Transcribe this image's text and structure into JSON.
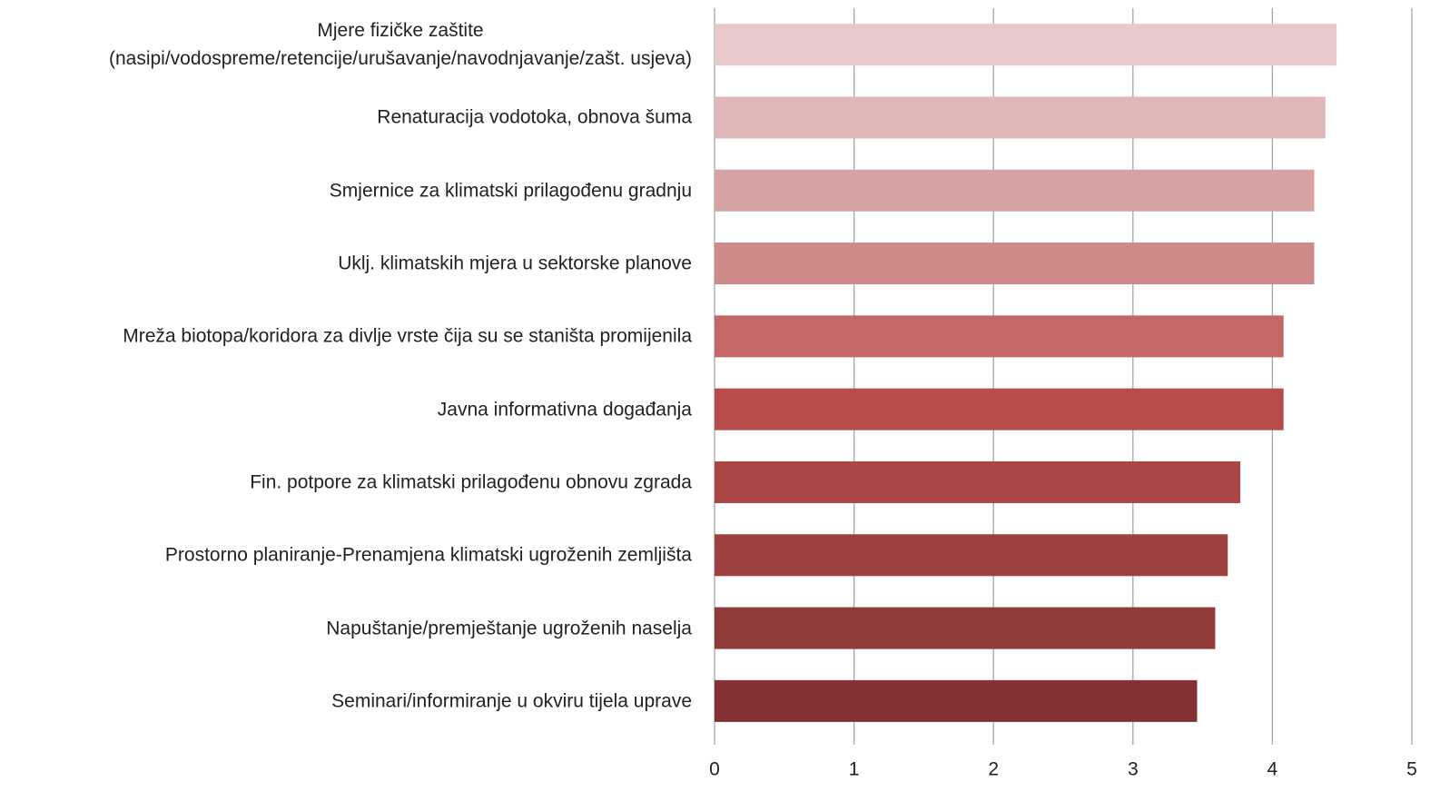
{
  "chart_data": {
    "type": "bar",
    "orientation": "horizontal",
    "categories": [
      "Mjere fizičke zaštite\n(nasipi/vodospreme/retencije/urušavanje/navodnjavanje/zašt. usjeva)",
      "Renaturacija vodotoka, obnova šuma",
      "Smjernice za klimatski prilagođenu gradnju",
      "Uklj. klimatskih mjera u sektorske planove",
      "Mreža biotopa/koridora za divlje vrste čija su se staništa promijenila",
      "Javna informativna događanja",
      "Fin. potpore za klimatski prilagođenu obnovu zgrada ",
      "Prostorno planiranje-Prenamjena klimatski ugroženih zemljišta",
      "Napuštanje/premještanje ugroženih naselja",
      "Seminari/informiranje u okviru tijela uprave"
    ],
    "values": [
      4.46,
      4.38,
      4.3,
      4.3,
      4.08,
      4.08,
      3.77,
      3.68,
      3.59,
      3.46
    ],
    "colors": [
      "#e8cacb",
      "#e0b7b8",
      "#d6a3a4",
      "#cd8a89",
      "#c46766",
      "#b84c4a",
      "#aa4644",
      "#9e403e",
      "#903a39",
      "#833133"
    ],
    "xlim": [
      0,
      5
    ],
    "xticks": [
      0,
      1,
      2,
      3,
      4,
      5
    ],
    "grid": true
  }
}
